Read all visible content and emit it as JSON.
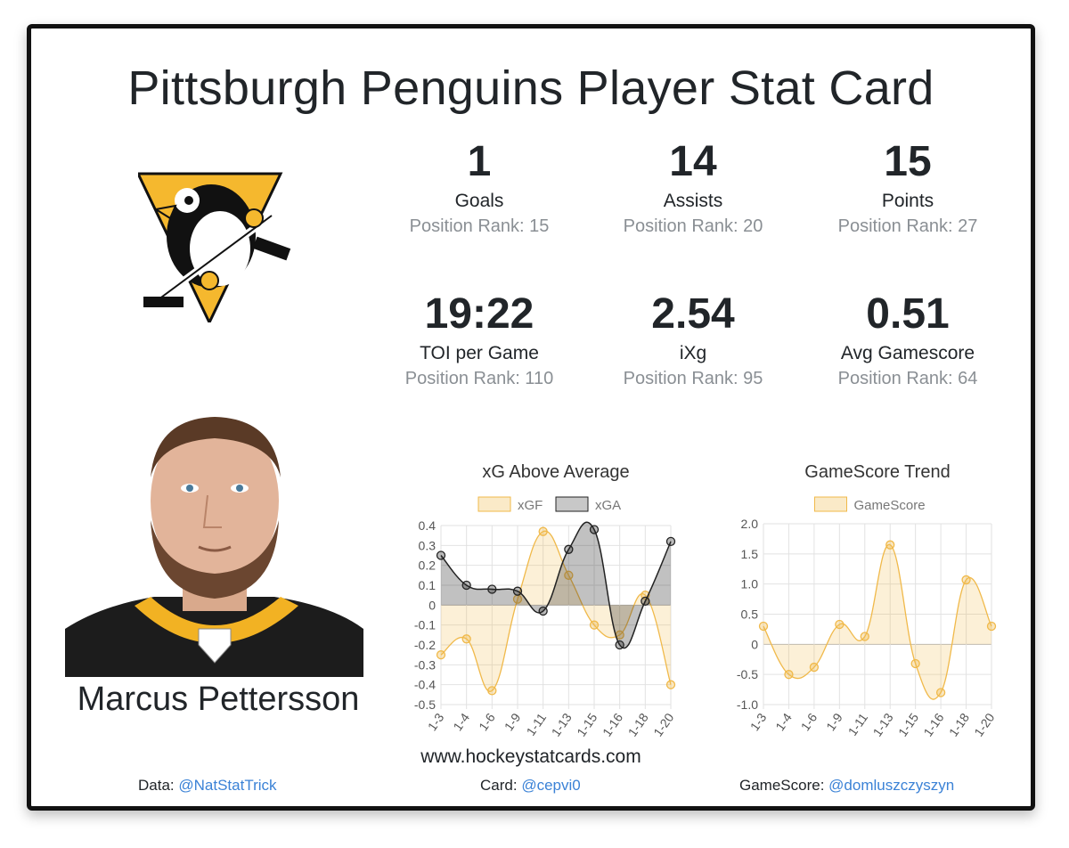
{
  "title": "Pittsburgh Penguins Player Stat Card",
  "player": {
    "name": "Marcus Pettersson"
  },
  "stats": [
    {
      "value": "1",
      "label": "Goals",
      "rank": "Position Rank: 15"
    },
    {
      "value": "14",
      "label": "Assists",
      "rank": "Position Rank: 20"
    },
    {
      "value": "15",
      "label": "Points",
      "rank": "Position Rank: 27"
    },
    {
      "value": "19:22",
      "label": "TOI per Game",
      "rank": "Position Rank: 110"
    },
    {
      "value": "2.54",
      "label": "iXg",
      "rank": "Position Rank: 95"
    },
    {
      "value": "0.51",
      "label": "Avg Gamescore",
      "rank": "Position Rank: 64"
    }
  ],
  "colors": {
    "xgf": "#f0b94a",
    "xga": "#222222",
    "grid": "#e2e2e2",
    "link": "#3b82d6"
  },
  "chart_data": [
    {
      "type": "area",
      "title": "xG Above Average",
      "categories": [
        "1-3",
        "1-4",
        "1-6",
        "1-9",
        "1-11",
        "1-13",
        "1-15",
        "1-16",
        "1-18",
        "1-20"
      ],
      "ylim": [
        -0.5,
        0.4
      ],
      "yticks": [
        "0.4",
        "0.3",
        "0.2",
        "0.1",
        "0",
        "-0.1",
        "-0.2",
        "-0.3",
        "-0.4",
        "-0.5"
      ],
      "legend_position": "top",
      "grid": true,
      "series": [
        {
          "name": "xGF",
          "values": [
            -0.25,
            -0.17,
            -0.43,
            0.03,
            0.37,
            0.15,
            -0.1,
            -0.15,
            0.05,
            -0.4
          ]
        },
        {
          "name": "xGA",
          "values": [
            0.25,
            0.1,
            0.08,
            0.07,
            -0.03,
            0.28,
            0.38,
            -0.2,
            0.02,
            0.32
          ]
        }
      ]
    },
    {
      "type": "area",
      "title": "GameScore Trend",
      "categories": [
        "1-3",
        "1-4",
        "1-6",
        "1-9",
        "1-11",
        "1-13",
        "1-15",
        "1-16",
        "1-18",
        "1-20"
      ],
      "ylim": [
        -1.0,
        2.0
      ],
      "yticks": [
        "2.0",
        "1.5",
        "1.0",
        "0.5",
        "0",
        "-0.5",
        "-1.0"
      ],
      "legend_position": "top",
      "grid": true,
      "series": [
        {
          "name": "GameScore",
          "values": [
            0.3,
            -0.5,
            -0.38,
            0.33,
            0.13,
            1.65,
            -0.32,
            -0.8,
            1.07,
            0.3
          ]
        }
      ]
    }
  ],
  "footer": {
    "site": "www.hockeystatcards.com",
    "data_label": "Data:",
    "data_link": "@NatStatTrick",
    "card_label": "Card:",
    "card_link": "@cepvi0",
    "gs_label": "GameScore:",
    "gs_link": "@domluszczyszyn"
  }
}
